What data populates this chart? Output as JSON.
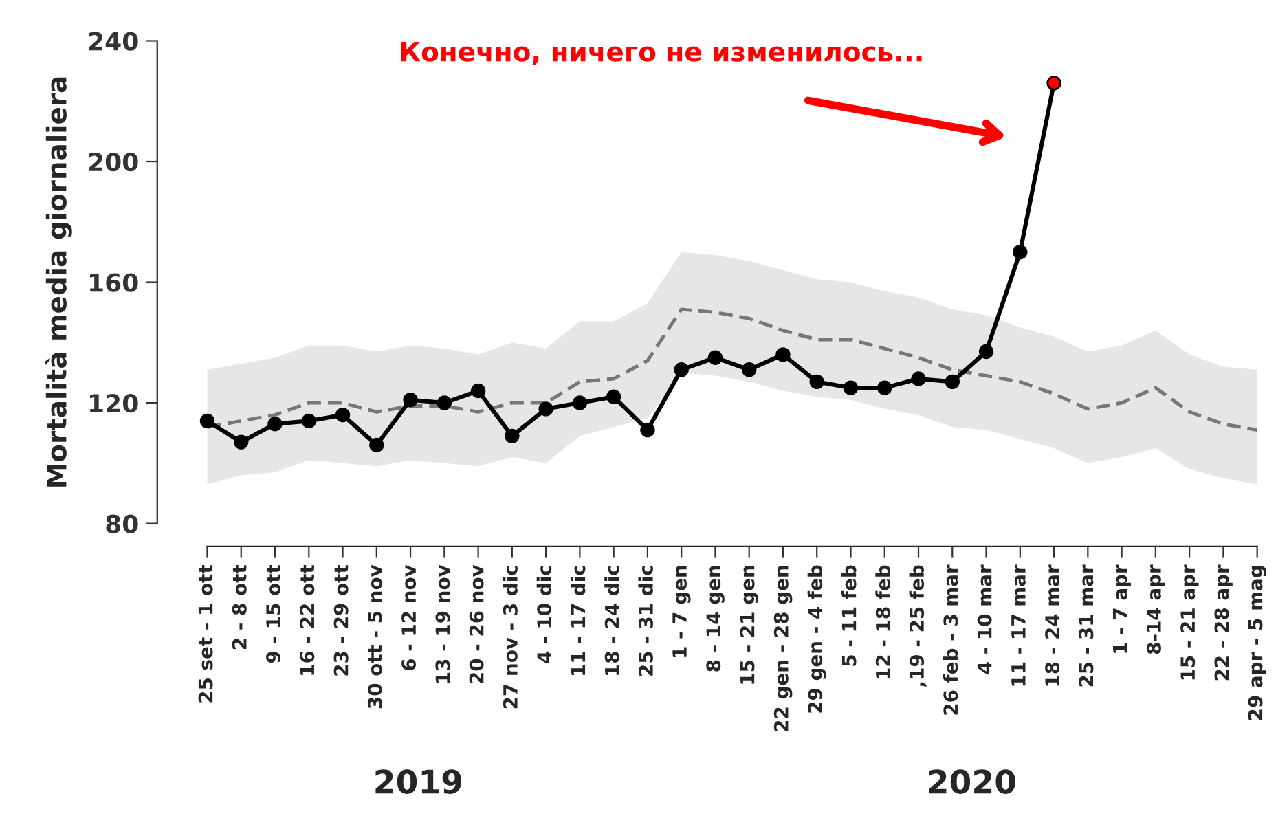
{
  "chart_data": {
    "type": "line",
    "categories": [
      "25 set - 1 ott",
      "2 - 8 ott",
      "9 - 15 ott",
      "16 - 22 ott",
      "23 - 29 ott",
      "30 ott - 5 nov",
      "6 - 12 nov",
      "13 - 19 nov",
      "20 - 26 nov",
      "27 nov - 3 dic",
      "4 - 10 dic",
      "11 - 17 dic",
      "18 - 24 dic",
      "25 - 31 dic",
      "1 - 7 gen",
      "8 - 14 gen",
      "15 - 21 gen",
      "22 gen - 28 gen",
      "29 gen - 4 feb",
      "5 - 11 feb",
      "12 - 18 feb",
      ",19 - 25 feb",
      "26 feb - 3 mar",
      "4 - 10 mar",
      "11 - 17 mar",
      "18 - 24 mar",
      "25 - 31 mar",
      "1 - 7 apr",
      "8-14 apr",
      "15 - 21 apr",
      "22 - 28 apr",
      "29 apr - 5 mag"
    ],
    "series": [
      {
        "color": "#777777",
        "line_style": "dashed",
        "marker": "none",
        "values": [
          112,
          114,
          116,
          120,
          120,
          117,
          119,
          119,
          117,
          120,
          120,
          127,
          128,
          134,
          151,
          150,
          148,
          144,
          141,
          141,
          138,
          135,
          131,
          129,
          127,
          123,
          118,
          120,
          125,
          117,
          113,
          111
        ],
        "lower": [
          93,
          96,
          97,
          101,
          100,
          99,
          101,
          100,
          99,
          102,
          100,
          109,
          112,
          115,
          130,
          129,
          127,
          124,
          122,
          121,
          118,
          116,
          112,
          111,
          108,
          105,
          100,
          102,
          105,
          98,
          95,
          93
        ],
        "upper": [
          131,
          133,
          135,
          139,
          139,
          137,
          139,
          138,
          136,
          140,
          138,
          147,
          147,
          153,
          170,
          169,
          167,
          164,
          161,
          160,
          157,
          155,
          151,
          149,
          145,
          142,
          137,
          139,
          144,
          136,
          132,
          131
        ]
      },
      {
        "color": "#000000",
        "line_style": "solid",
        "marker": "circle",
        "values": [
          114,
          107,
          113,
          114,
          116,
          106,
          121,
          120,
          124,
          109,
          118,
          120,
          122,
          111,
          131,
          135,
          131,
          136,
          127,
          125,
          125,
          128,
          127,
          137,
          170,
          226,
          null,
          null,
          null,
          null,
          null,
          null
        ],
        "colors": [
          "#000000",
          "#000000",
          "#000000",
          "#000000",
          "#000000",
          "#000000",
          "#000000",
          "#000000",
          "#000000",
          "#000000",
          "#000000",
          "#000000",
          "#000000",
          "#000000",
          "#000000",
          "#000000",
          "#000000",
          "#000000",
          "#000000",
          "#000000",
          "#000000",
          "#000000",
          "#000000",
          "#000000",
          "#000000",
          "#ff0000",
          null,
          null,
          null,
          null,
          null,
          null
        ]
      }
    ],
    "ylabel": "Mortalità media giornaliera",
    "ylim": [
      80,
      240
    ],
    "yticks": [
      80,
      120,
      160,
      200,
      240
    ],
    "grid": false,
    "legend": false,
    "annotations": [
      "Конечно, ничего не изменилось...",
      "2019",
      "2020"
    ]
  }
}
